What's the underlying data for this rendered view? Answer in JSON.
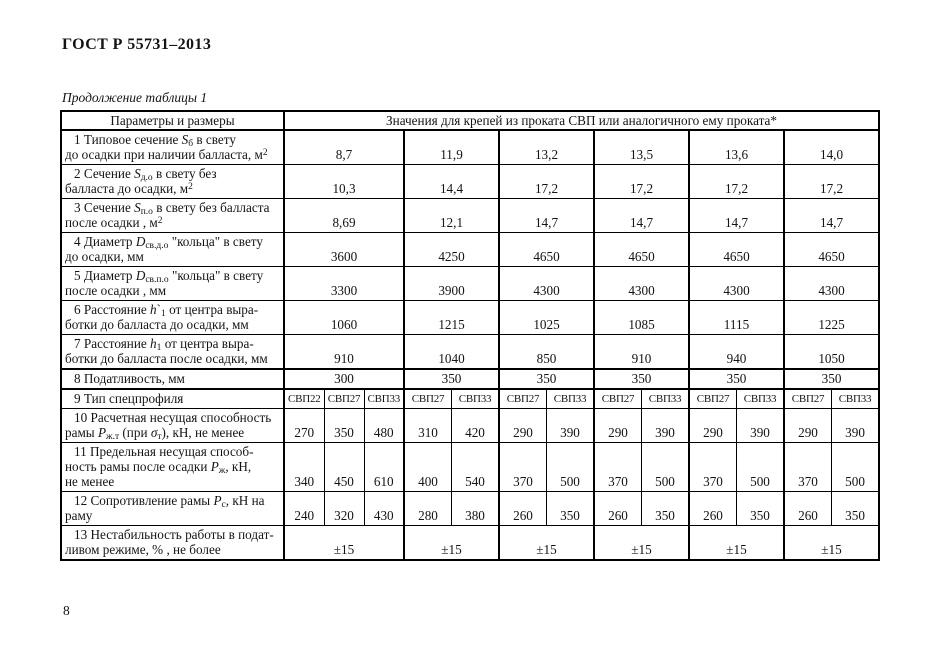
{
  "page": {
    "doc_header": "ГОСТ Р 55731–2013",
    "table_caption": "Продолжение таблицы 1",
    "page_number": "8"
  },
  "table": {
    "header": {
      "params": "Параметры и размеры",
      "values": "Значения для крепей из проката СВП  или аналогичного ему проката*"
    },
    "group_subcols": [
      3,
      2,
      2,
      2,
      2,
      2
    ],
    "rows": [
      {
        "label": [
          {
            "t": "1 Типовое сечение "
          },
          {
            "t": "S",
            "s": "i"
          },
          {
            "t": "б",
            "s": "sub"
          },
          {
            "t": " в свету"
          },
          {
            "br": true
          },
          {
            "t": "до осадки  при наличии балласта, м"
          },
          {
            "t": "2",
            "s": "sup"
          }
        ],
        "values": [
          "8,7",
          "11,9",
          "13,2",
          "13,5",
          "13,6",
          "14,0"
        ]
      },
      {
        "label": [
          {
            "t": "2 Сечение "
          },
          {
            "t": "S",
            "s": "i"
          },
          {
            "t": "д.о",
            "s": "sub"
          },
          {
            "t": " в свету  без"
          },
          {
            "br": true
          },
          {
            "t": "балласта до осадки, м"
          },
          {
            "t": "2",
            "s": "sup"
          }
        ],
        "values": [
          "10,3",
          "14,4",
          "17,2",
          "17,2",
          "17,2",
          "17,2"
        ]
      },
      {
        "label": [
          {
            "t": "3 Сечение "
          },
          {
            "t": "S",
            "s": "i"
          },
          {
            "t": "п.о",
            "s": "sub"
          },
          {
            "t": " в свету без балласта"
          },
          {
            "br": true
          },
          {
            "t": "после осадки , м"
          },
          {
            "t": "2",
            "s": "sup"
          }
        ],
        "values": [
          "8,69",
          "12,1",
          "14,7",
          "14,7",
          "14,7",
          "14,7"
        ]
      },
      {
        "label": [
          {
            "t": "4 Диаметр "
          },
          {
            "t": "D",
            "s": "i"
          },
          {
            "t": "св.д.о",
            "s": "sub"
          },
          {
            "t": " \"кольца\" в  свету"
          },
          {
            "br": true
          },
          {
            "t": "до осадки, мм"
          }
        ],
        "values": [
          "3600",
          "4250",
          "4650",
          "4650",
          "4650",
          "4650"
        ]
      },
      {
        "label": [
          {
            "t": "5 Диаметр  "
          },
          {
            "t": "D",
            "s": "i"
          },
          {
            "t": "св.п.о",
            "s": "sub"
          },
          {
            "t": " \"кольца\" в  свету"
          },
          {
            "br": true
          },
          {
            "t": "после осадки , мм"
          }
        ],
        "values": [
          "3300",
          "3900",
          "4300",
          "4300",
          "4300",
          "4300"
        ]
      },
      {
        "label": [
          {
            "t": "6 Расстояние "
          },
          {
            "t": "h",
            "s": "i"
          },
          {
            "t": "`"
          },
          {
            "t": "1",
            "s": "sub"
          },
          {
            "t": " от центра выра-"
          },
          {
            "br": true
          },
          {
            "t": "ботки до балласта до осадки, мм"
          }
        ],
        "values": [
          "1060",
          "1215",
          "1025",
          "1085",
          "1115",
          "1225"
        ]
      },
      {
        "label": [
          {
            "t": "7 Расстояние "
          },
          {
            "t": "h",
            "s": "i"
          },
          {
            "t": "1",
            "s": "sub"
          },
          {
            "t": " от центра выра-"
          },
          {
            "br": true
          },
          {
            "t": "ботки до балласта после осадки, мм"
          }
        ],
        "values": [
          "910",
          "1040",
          "850",
          "910",
          "940",
          "1050"
        ]
      },
      {
        "label": [
          {
            "t": "8 Податливость, мм"
          }
        ],
        "values": [
          "300",
          "350",
          "350",
          "350",
          "350",
          "350"
        ]
      },
      {
        "label": [
          {
            "t": "9 Тип спецпрофиля"
          }
        ],
        "values": [
          "СВП22",
          "СВП27",
          "СВП33",
          "СВП27",
          "СВП33",
          "СВП27",
          "СВП33",
          "СВП27",
          "СВП33",
          "СВП27",
          "СВП33",
          "СВП27",
          "СВП33"
        ]
      },
      {
        "label": [
          {
            "t": "10 Расчетная несущая способность"
          },
          {
            "br": true
          },
          {
            "t": "рамы "
          },
          {
            "t": "P",
            "s": "i"
          },
          {
            "t": "ж.т",
            "s": "sub"
          },
          {
            "t": " (при "
          },
          {
            "t": "σ",
            "s": "i"
          },
          {
            "t": "т",
            "s": "sub"
          },
          {
            "t": "), кН, не менее"
          }
        ],
        "values": [
          "270",
          "350",
          "480",
          "310",
          "420",
          "290",
          "390",
          "290",
          "390",
          "290",
          "390",
          "290",
          "390"
        ]
      },
      {
        "label": [
          {
            "t": "11 Предельная несущая способ-"
          },
          {
            "br": true
          },
          {
            "t": "ность рамы после осадки "
          },
          {
            "t": "P",
            "s": "i"
          },
          {
            "t": "ж",
            "s": "sub"
          },
          {
            "t": ", кН,"
          },
          {
            "br": true
          },
          {
            "t": "не менее"
          }
        ],
        "values": [
          "340",
          "450",
          "610",
          "400",
          "540",
          "370",
          "500",
          "370",
          "500",
          "370",
          "500",
          "370",
          "500"
        ]
      },
      {
        "label": [
          {
            "t": "12 Сопротивление рамы "
          },
          {
            "t": "P",
            "s": "i"
          },
          {
            "t": "с",
            "s": "sub"
          },
          {
            "t": ", кН на"
          },
          {
            "br": true
          },
          {
            "t": "раму"
          }
        ],
        "values": [
          "240",
          "320",
          "430",
          "280",
          "380",
          "260",
          "350",
          "260",
          "350",
          "260",
          "350",
          "260",
          "350"
        ]
      },
      {
        "label": [
          {
            "t": "13 Нестабильность работы в подат-"
          },
          {
            "br": true
          },
          {
            "t": "ливом режиме, % , не более"
          }
        ],
        "values": [
          "±15",
          "±15",
          "±15",
          "±15",
          "±15",
          "±15"
        ]
      }
    ]
  }
}
